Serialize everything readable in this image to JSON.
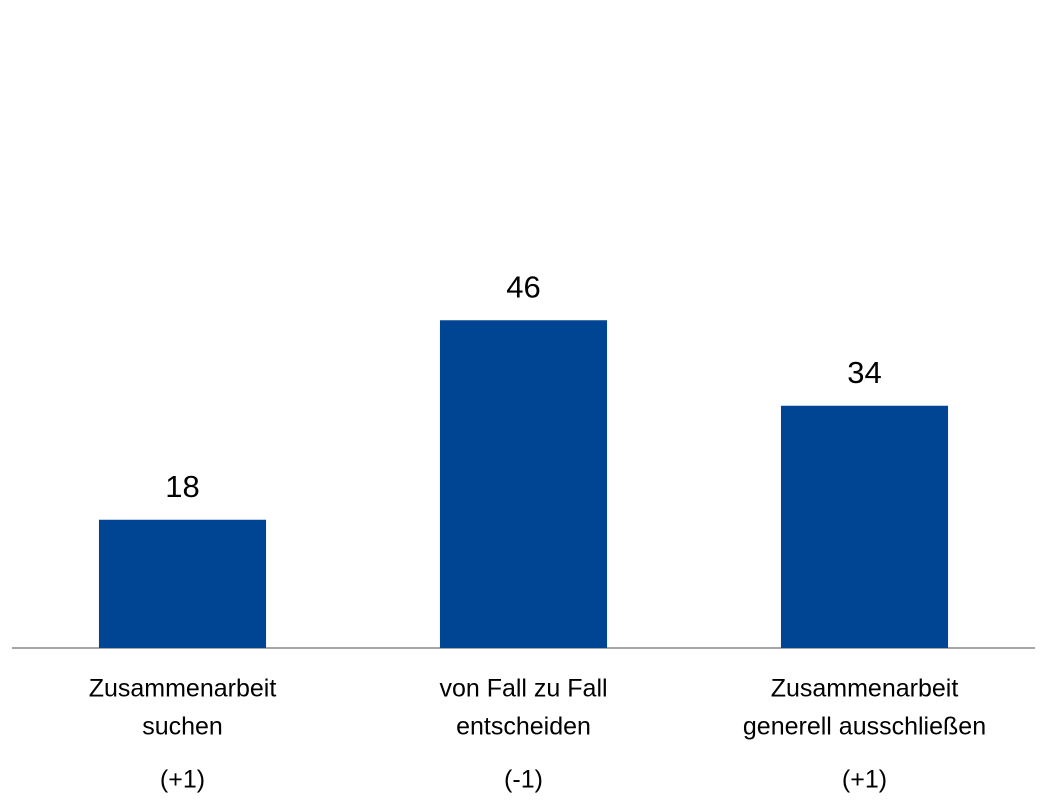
{
  "chart_data": {
    "type": "bar",
    "categories": [
      [
        "Zusammenarbeit",
        "suchen"
      ],
      [
        "von Fall zu Fall",
        "entscheiden"
      ],
      [
        "Zusammenarbeit",
        "generell ausschließen"
      ]
    ],
    "annotations": [
      "(+1)",
      "(-1)",
      "(+1)"
    ],
    "values": [
      18,
      46,
      34
    ],
    "color": "#004494",
    "ylim": [
      0,
      80
    ]
  }
}
